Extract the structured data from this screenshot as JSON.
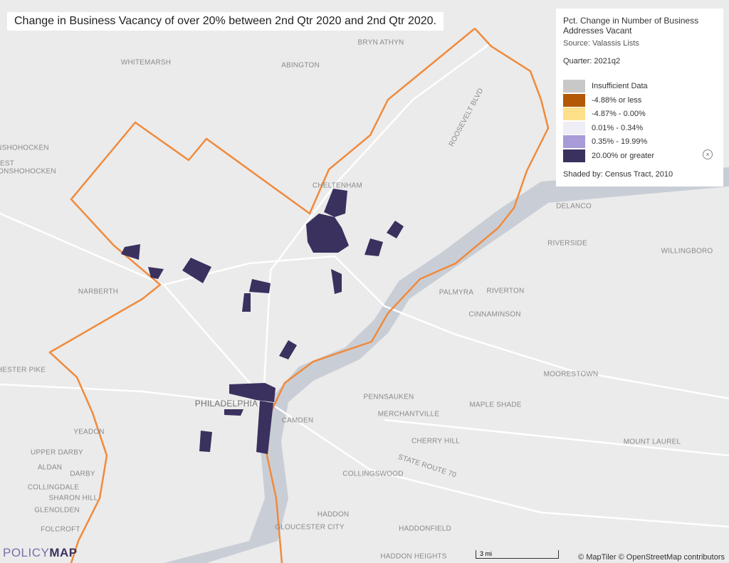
{
  "header": {
    "title": "Change in Business Vacancy of over 20% between 2nd Qtr 2020 and 2nd Qtr 2020."
  },
  "legend": {
    "title": "Pct. Change in Number of Business Addresses Vacant",
    "source": "Source: Valassis Lists",
    "quarter_label": "Quarter:",
    "quarter": "2021q2",
    "items": [
      {
        "label": "Insufficient Data",
        "color": "#c8c8c8"
      },
      {
        "label": "-4.88% or less",
        "color": "#b35806"
      },
      {
        "label": "-4.87% - 0.00%",
        "color": "#fee08b"
      },
      {
        "label": "0.01% - 0.34%",
        "color": "#efedf5"
      },
      {
        "label": "0.35% - 19.99%",
        "color": "#a99ad8"
      },
      {
        "label": "20.00% or greater",
        "color": "#3a315f"
      }
    ],
    "shaded_label": "Shaded by:",
    "shaded_value": "Census Tract, 2010"
  },
  "places": [
    "BRYN ATHYN",
    "WHITEMARSH",
    "ABINGTON",
    "NSHOHOCKEN",
    "EST",
    "ONSHOHOCKEN",
    "CHELTENHAM",
    "DELANCO",
    "RIVERSIDE",
    "WILLINGBORO",
    "NARBERTH",
    "PALMYRA",
    "RIVERTON",
    "CINNAMINSON",
    "MOORESTOWN",
    "PENNSAUKEN",
    "PHILADELPHIA",
    "MAPLE SHADE",
    "MERCHANTVILLE",
    "CAMDEN",
    "YEADON",
    "CHERRY HILL",
    "MOUNT LAUREL",
    "UPPER DARBY",
    "ALDAN",
    "DARBY",
    "COLLINGSWOOD",
    "COLLINGDALE",
    "SHARON HILL",
    "GLENOLDEN",
    "HADDON",
    "FOLCROFT",
    "GLOUCESTER CITY",
    "HADDONFIELD",
    "HADDON HEIGHTS",
    "ROOSEVELT BLVD",
    "STATE ROUTE 70",
    "HESTER PIKE"
  ],
  "footer": {
    "logo_a": "POLICY",
    "logo_b": "MAP",
    "scale": "3 mi",
    "attribution": "© MapTiler © OpenStreetMap contributors"
  }
}
